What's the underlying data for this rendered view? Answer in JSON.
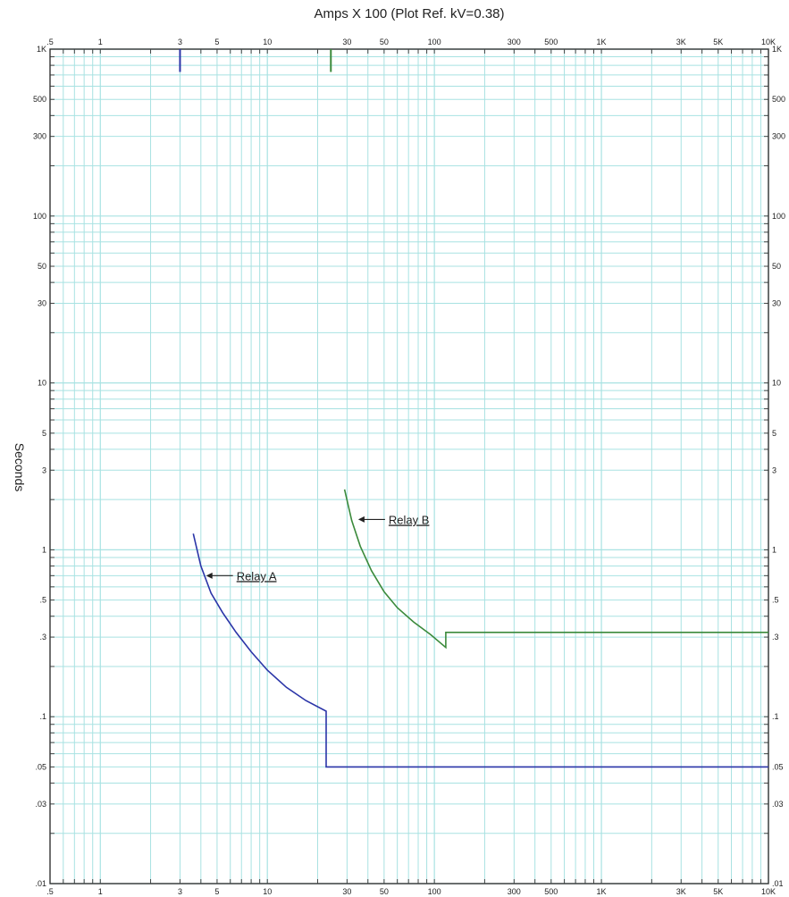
{
  "chart_data": {
    "type": "line",
    "title": "Amps  X  100 (Plot Ref. kV=0.38)",
    "ylabel": "Seconds",
    "xscale": "log",
    "yscale": "log",
    "xlim": [
      0.5,
      10000
    ],
    "ylim": [
      0.01,
      1000
    ],
    "grid": true,
    "x_tick_labels": [
      {
        "value": 0.5,
        "label": ".5"
      },
      {
        "value": 1,
        "label": "1"
      },
      {
        "value": 3,
        "label": "3"
      },
      {
        "value": 5,
        "label": "5"
      },
      {
        "value": 10,
        "label": "10"
      },
      {
        "value": 30,
        "label": "30"
      },
      {
        "value": 50,
        "label": "50"
      },
      {
        "value": 100,
        "label": "100"
      },
      {
        "value": 300,
        "label": "300"
      },
      {
        "value": 500,
        "label": "500"
      },
      {
        "value": 1000,
        "label": "1K"
      },
      {
        "value": 3000,
        "label": "3K"
      },
      {
        "value": 5000,
        "label": "5K"
      },
      {
        "value": 10000,
        "label": "10K"
      }
    ],
    "y_tick_labels": [
      {
        "value": 1000,
        "label": "1K"
      },
      {
        "value": 500,
        "label": "500"
      },
      {
        "value": 300,
        "label": "300"
      },
      {
        "value": 100,
        "label": "100"
      },
      {
        "value": 50,
        "label": "50"
      },
      {
        "value": 30,
        "label": "30"
      },
      {
        "value": 10,
        "label": "10"
      },
      {
        "value": 5,
        "label": "5"
      },
      {
        "value": 3,
        "label": "3"
      },
      {
        "value": 1,
        "label": "1"
      },
      {
        "value": 0.5,
        "label": ".5"
      },
      {
        "value": 0.3,
        "label": ".3"
      },
      {
        "value": 0.1,
        "label": ".1"
      },
      {
        "value": 0.05,
        "label": ".05"
      },
      {
        "value": 0.03,
        "label": ".03"
      },
      {
        "value": 0.01,
        "label": ".01"
      }
    ],
    "series": [
      {
        "name": "Relay A",
        "color": "#2b35a8",
        "x": [
          3.6,
          4.0,
          4.6,
          5.4,
          6.5,
          8.0,
          10,
          13,
          17,
          22.5,
          22.5,
          10000
        ],
        "y": [
          1.25,
          0.8,
          0.55,
          0.42,
          0.32,
          0.245,
          0.19,
          0.15,
          0.125,
          0.108,
          0.05,
          0.05
        ]
      },
      {
        "name": "Relay B",
        "color": "#3b8a3b",
        "x": [
          29,
          32,
          36,
          42,
          50,
          60,
          75,
          95,
          117,
          117,
          10000
        ],
        "y": [
          2.3,
          1.5,
          1.05,
          0.75,
          0.56,
          0.45,
          0.37,
          0.31,
          0.26,
          0.32,
          0.32
        ]
      }
    ],
    "markers": [
      {
        "name": "Relay A pickup",
        "color": "#2b35a8",
        "x": 3,
        "y_from": 1000,
        "y_to": 730
      },
      {
        "name": "Relay B pickup",
        "color": "#3b8a3b",
        "x": 24,
        "y_from": 1000,
        "y_to": 730
      }
    ],
    "annotations": [
      {
        "series": "Relay A",
        "text": "Relay A",
        "arrow_x": 4.3,
        "arrow_y": 0.7
      },
      {
        "series": "Relay B",
        "text": "Relay B",
        "arrow_x": 35,
        "arrow_y": 1.52
      }
    ]
  }
}
